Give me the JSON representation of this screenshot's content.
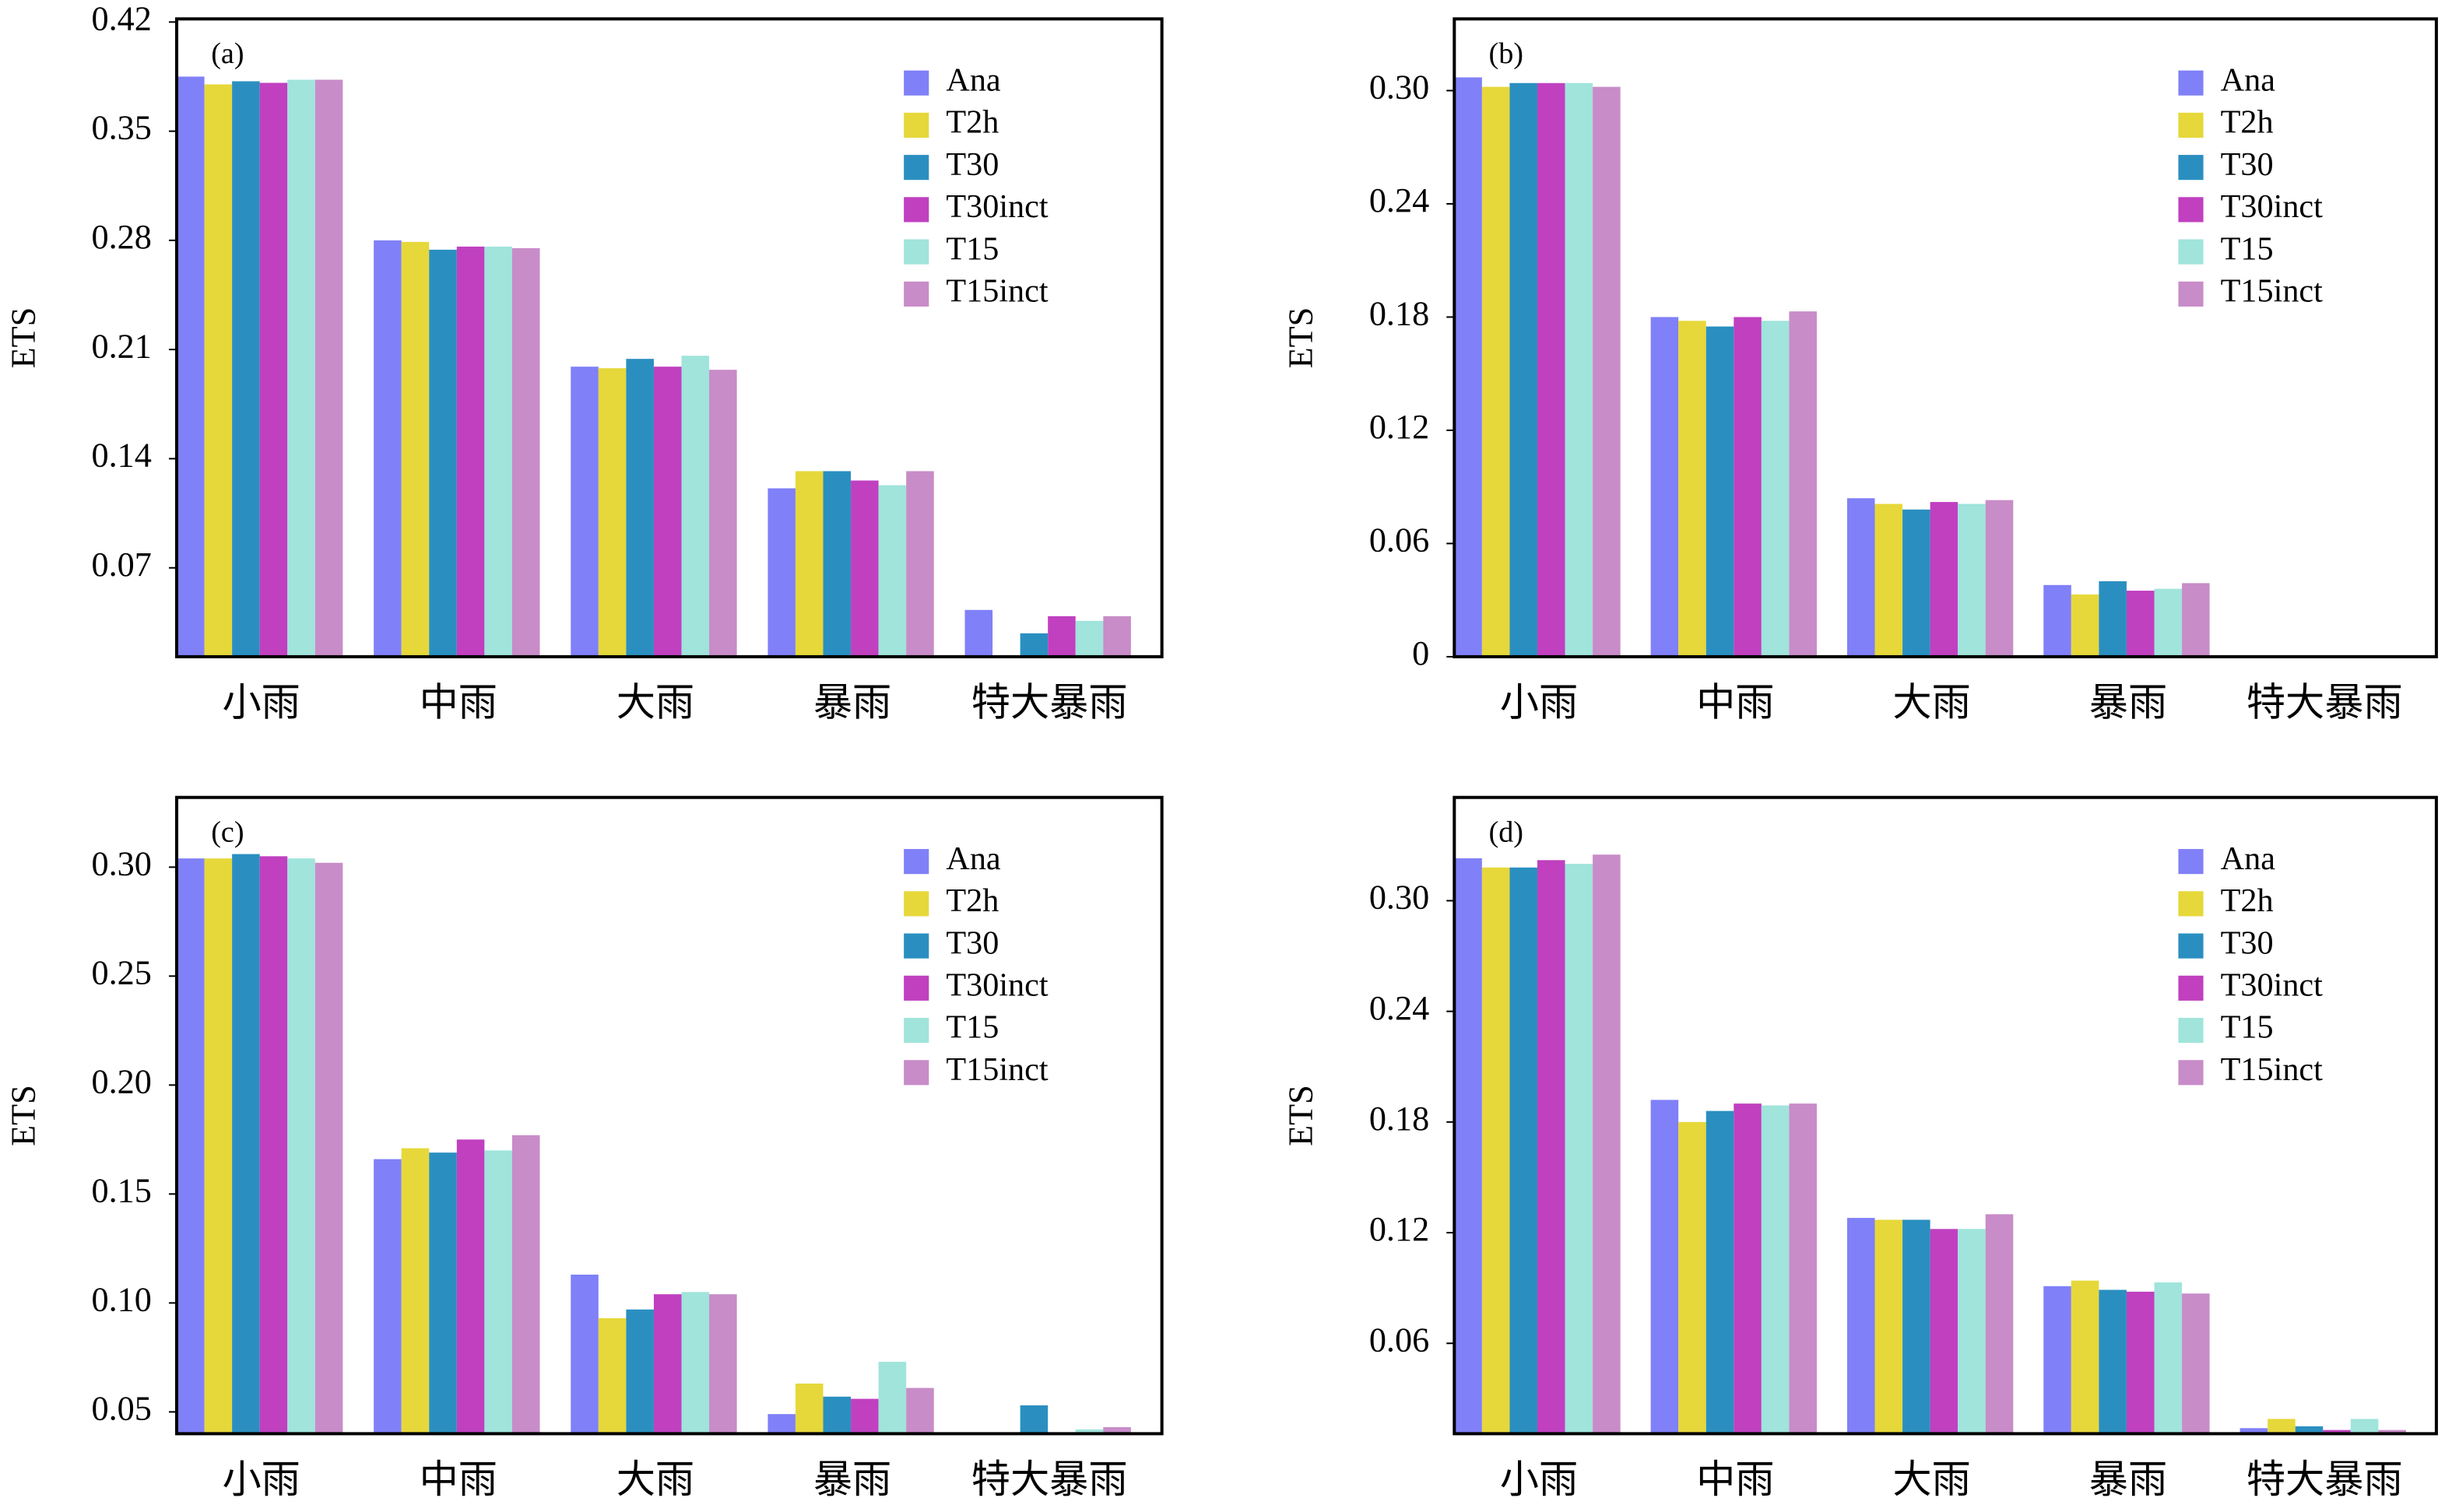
{
  "chart_data": [
    {
      "type": "bar",
      "annotation": "(a)",
      "ylabel": "ETS",
      "categories": [
        "小雨",
        "中雨",
        "大雨",
        "暴雨",
        "特大暴雨"
      ],
      "ylim": [
        0.013,
        0.422
      ],
      "yticks": [
        0.07,
        0.14,
        0.21,
        0.28,
        0.35,
        0.42
      ],
      "series": [
        {
          "name": "Ana",
          "color": "#8080f8",
          "values": [
            0.385,
            0.28,
            0.199,
            0.121,
            0.043
          ]
        },
        {
          "name": "T2h",
          "color": "#e6d83a",
          "values": [
            0.38,
            0.279,
            0.198,
            0.132,
            null
          ]
        },
        {
          "name": "T30",
          "color": "#2a8fc0",
          "values": [
            0.382,
            0.274,
            0.204,
            0.132,
            0.028
          ]
        },
        {
          "name": "T30inct",
          "color": "#c040c0",
          "values": [
            0.381,
            0.276,
            0.199,
            0.126,
            0.039
          ]
        },
        {
          "name": "T15",
          "color": "#a0e4dc",
          "values": [
            0.383,
            0.276,
            0.206,
            0.123,
            0.036
          ]
        },
        {
          "name": "T15inct",
          "color": "#c88cc8",
          "values": [
            0.383,
            0.275,
            0.197,
            0.132,
            0.039
          ]
        }
      ]
    },
    {
      "type": "bar",
      "annotation": "(b)",
      "ylabel": "ETS",
      "categories": [
        "小雨",
        "中雨",
        "大雨",
        "暴雨",
        "特大暴雨"
      ],
      "ylim": [
        0,
        0.338
      ],
      "yticks": [
        0,
        0.06,
        0.12,
        0.18,
        0.24,
        {
          "value": 0.3,
          "label": "0.30"
        }
      ],
      "series": [
        {
          "name": "Ana",
          "color": "#8080f8",
          "values": [
            0.307,
            0.18,
            0.084,
            0.038,
            null
          ]
        },
        {
          "name": "T2h",
          "color": "#e6d83a",
          "values": [
            0.302,
            0.178,
            0.081,
            0.033,
            null
          ]
        },
        {
          "name": "T30",
          "color": "#2a8fc0",
          "values": [
            0.304,
            0.175,
            0.078,
            0.04,
            null
          ]
        },
        {
          "name": "T30inct",
          "color": "#c040c0",
          "values": [
            0.304,
            0.18,
            0.082,
            0.035,
            null
          ]
        },
        {
          "name": "T15",
          "color": "#a0e4dc",
          "values": [
            0.304,
            0.178,
            0.081,
            0.036,
            null
          ]
        },
        {
          "name": "T15inct",
          "color": "#c88cc8",
          "values": [
            0.302,
            0.183,
            0.083,
            0.039,
            null
          ]
        }
      ]
    },
    {
      "type": "bar",
      "annotation": "(c)",
      "ylabel": "ETS",
      "categories": [
        "小雨",
        "中雨",
        "大雨",
        "暴雨",
        "特大暴雨"
      ],
      "ylim": [
        0.04,
        0.332
      ],
      "yticks": [
        0.05,
        {
          "value": 0.1,
          "label": "0.10"
        },
        0.15,
        {
          "value": 0.2,
          "label": "0.20"
        },
        0.25,
        {
          "value": 0.3,
          "label": "0.30"
        }
      ],
      "series": [
        {
          "name": "Ana",
          "color": "#8080f8",
          "values": [
            0.304,
            0.166,
            0.113,
            0.049,
            null
          ]
        },
        {
          "name": "T2h",
          "color": "#e6d83a",
          "values": [
            0.304,
            0.171,
            0.093,
            0.063,
            null
          ]
        },
        {
          "name": "T30",
          "color": "#2a8fc0",
          "values": [
            0.306,
            0.169,
            0.097,
            0.057,
            0.053
          ]
        },
        {
          "name": "T30inct",
          "color": "#c040c0",
          "values": [
            0.305,
            0.175,
            0.104,
            0.056,
            null
          ]
        },
        {
          "name": "T15",
          "color": "#a0e4dc",
          "values": [
            0.304,
            0.17,
            0.105,
            0.073,
            0.042
          ]
        },
        {
          "name": "T15inct",
          "color": "#c88cc8",
          "values": [
            0.302,
            0.177,
            0.104,
            0.061,
            0.043
          ]
        }
      ]
    },
    {
      "type": "bar",
      "annotation": "(d)",
      "ylabel": "ETS",
      "categories": [
        "小雨",
        "中雨",
        "大雨",
        "暴雨",
        "特大暴雨"
      ],
      "ylim": [
        0.011,
        0.356
      ],
      "yticks": [
        0.06,
        0.12,
        0.18,
        0.24,
        {
          "value": 0.3,
          "label": "0.30"
        }
      ],
      "series": [
        {
          "name": "Ana",
          "color": "#8080f8",
          "values": [
            0.323,
            0.192,
            0.128,
            0.091,
            0.014
          ]
        },
        {
          "name": "T2h",
          "color": "#e6d83a",
          "values": [
            0.318,
            0.18,
            0.127,
            0.094,
            0.019
          ]
        },
        {
          "name": "T30",
          "color": "#2a8fc0",
          "values": [
            0.318,
            0.186,
            0.127,
            0.089,
            0.015
          ]
        },
        {
          "name": "T30inct",
          "color": "#c040c0",
          "values": [
            0.322,
            0.19,
            0.122,
            0.088,
            0.013
          ]
        },
        {
          "name": "T15",
          "color": "#a0e4dc",
          "values": [
            0.32,
            0.189,
            0.122,
            0.093,
            0.019
          ]
        },
        {
          "name": "T15inct",
          "color": "#c88cc8",
          "values": [
            0.325,
            0.19,
            0.13,
            0.087,
            0.013
          ]
        }
      ]
    }
  ]
}
